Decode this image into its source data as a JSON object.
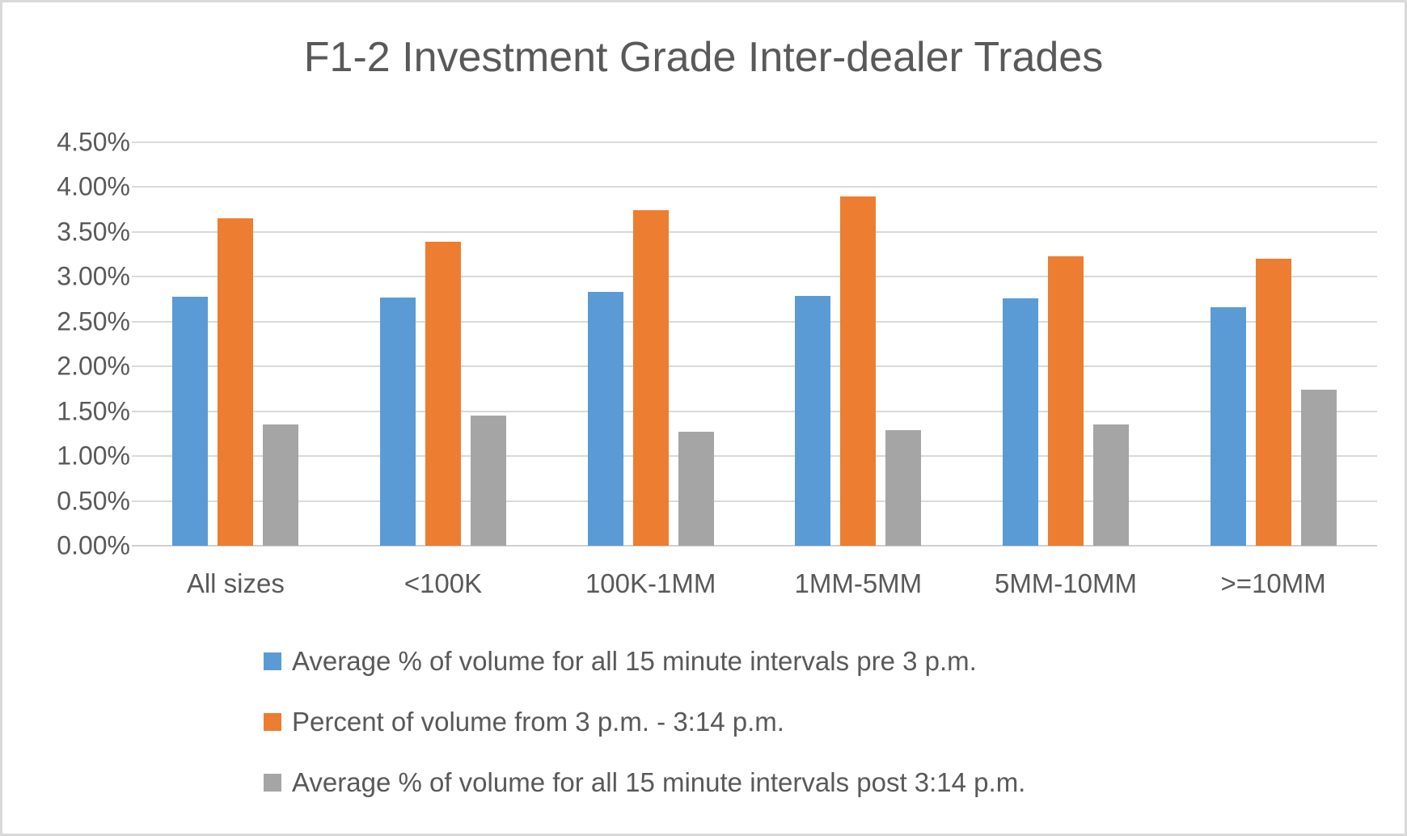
{
  "title": "F1-2 Investment Grade Inter-dealer Trades",
  "colors": {
    "series_blue": "#5B9BD5",
    "series_orange": "#ED7D31",
    "series_gray": "#A5A5A5",
    "text": "#595959",
    "gridline": "#D9D9D9",
    "border": "#D9D9D9",
    "background": "#FFFFFF"
  },
  "chart_data": {
    "type": "bar",
    "title": "F1-2 Investment Grade Inter-dealer Trades",
    "categories": [
      "All sizes",
      "<100K",
      "100K-1MM",
      "1MM-5MM",
      "5MM-10MM",
      ">=10MM"
    ],
    "series": [
      {
        "name": "Average % of volume for all 15 minute intervals pre 3 p.m.",
        "color": "#5B9BD5",
        "values": [
          2.78,
          2.77,
          2.83,
          2.79,
          2.76,
          2.66
        ]
      },
      {
        "name": "Percent of volume from 3 p.m. - 3:14 p.m.",
        "color": "#ED7D31",
        "values": [
          3.65,
          3.39,
          3.74,
          3.9,
          3.23,
          3.2
        ]
      },
      {
        "name": "Average % of volume for all 15 minute intervals post 3:14 p.m.",
        "color": "#A5A5A5",
        "values": [
          1.35,
          1.45,
          1.27,
          1.29,
          1.35,
          1.74
        ]
      }
    ],
    "xlabel": "",
    "ylabel": "",
    "ylim": [
      0,
      4.5
    ],
    "ytick_step": 0.5,
    "yticklabels": [
      "0.00%",
      "0.50%",
      "1.00%",
      "1.50%",
      "2.00%",
      "2.50%",
      "3.00%",
      "3.50%",
      "4.00%",
      "4.50%"
    ],
    "grid": "horizontal",
    "legend_position": "bottom-left"
  }
}
